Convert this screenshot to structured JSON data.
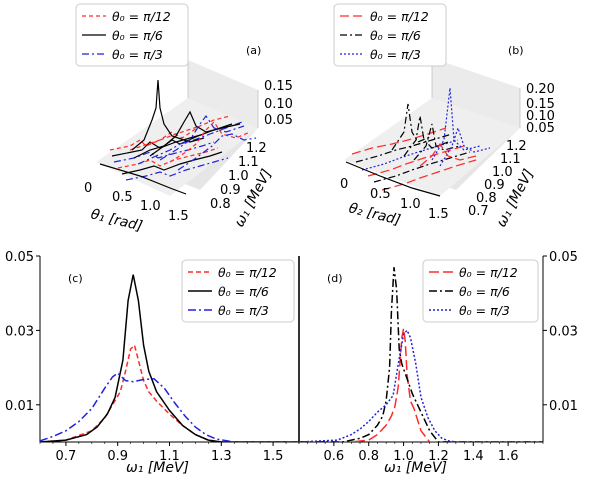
{
  "panels_3d": [
    {
      "tag": "(a)",
      "legend": [
        "θ₀ = π/12",
        "θ₀ = π/6",
        "θ₀ = π/3"
      ],
      "x_label": "θ₁ [rad]",
      "x_ticks": [
        "0",
        "0.5",
        "1.0",
        "1.5"
      ],
      "y_label": "ω₁ [MeV]",
      "y_ticks": [
        "0.8",
        "0.9",
        "1.0",
        "1.1",
        "1.2"
      ],
      "z_ticks": [
        "0.05",
        "0.10",
        "0.15"
      ]
    },
    {
      "tag": "(b)",
      "legend": [
        "θ₀ = π/12",
        "θ₀ = π/6",
        "θ₀ = π/3"
      ],
      "x_label": "θ₂ [rad]",
      "x_ticks": [
        "0",
        "0.5",
        "1.0",
        "1.5"
      ],
      "y_label": "ω₁ [MeV]",
      "y_ticks": [
        "0.7",
        "0.8",
        "0.9",
        "1.0",
        "1.1",
        "1.2"
      ],
      "z_ticks": [
        "0.05",
        "0.10",
        "0.15",
        "0.20"
      ]
    }
  ],
  "colors": {
    "pi12": "#ff2a2a",
    "pi6": "#000000",
    "pi3": "#2222dd",
    "pane": "#ebebeb"
  },
  "chart_data": [
    {
      "type": "line",
      "tag": "(c)",
      "xlabel": "ω₁ [MeV]",
      "ylabel": "",
      "xlim": [
        0.6,
        1.6
      ],
      "ylim": [
        0,
        0.05
      ],
      "x_ticks": [
        0.7,
        0.9,
        1.1,
        1.3,
        1.5
      ],
      "y_ticks": [
        0.01,
        0.03,
        0.05
      ],
      "legend_position": "top-right",
      "series": [
        {
          "name": "θ₀ = π/12",
          "color": "#ff2a2a",
          "dash": "5,3",
          "x": [
            0.6,
            0.7,
            0.8,
            0.85,
            0.88,
            0.91,
            0.93,
            0.95,
            0.965,
            0.98,
            1.0,
            1.02,
            1.05,
            1.1,
            1.15,
            1.2,
            1.25,
            1.3,
            1.6
          ],
          "y": [
            0,
            0.0005,
            0.003,
            0.0065,
            0.01,
            0.0135,
            0.019,
            0.025,
            0.026,
            0.022,
            0.0165,
            0.0135,
            0.011,
            0.0075,
            0.0045,
            0.002,
            0.0005,
            0,
            0
          ]
        },
        {
          "name": "θ₀ = π/6",
          "color": "#000000",
          "dash": "",
          "x": [
            0.6,
            0.7,
            0.78,
            0.82,
            0.86,
            0.89,
            0.92,
            0.94,
            0.96,
            0.98,
            1.0,
            1.02,
            1.05,
            1.1,
            1.15,
            1.2,
            1.25,
            1.3,
            1.6
          ],
          "y": [
            0,
            0.0005,
            0.002,
            0.004,
            0.0075,
            0.012,
            0.022,
            0.038,
            0.045,
            0.038,
            0.026,
            0.019,
            0.0135,
            0.0085,
            0.0045,
            0.002,
            0.0005,
            0,
            0
          ]
        },
        {
          "name": "θ₀ = π/3",
          "color": "#2222dd",
          "dash": "8,3,2,3",
          "x": [
            0.6,
            0.65,
            0.7,
            0.75,
            0.8,
            0.85,
            0.88,
            0.9,
            0.93,
            0.96,
            1.0,
            1.04,
            1.08,
            1.12,
            1.16,
            1.2,
            1.24,
            1.28,
            1.35,
            1.6
          ],
          "y": [
            0.0003,
            0.0015,
            0.003,
            0.0055,
            0.009,
            0.0145,
            0.0175,
            0.0185,
            0.0165,
            0.0162,
            0.0168,
            0.017,
            0.0145,
            0.0105,
            0.007,
            0.004,
            0.002,
            0.0008,
            0,
            0
          ]
        }
      ]
    },
    {
      "type": "line",
      "tag": "(d)",
      "xlabel": "ω₁ [MeV]",
      "ylabel": "",
      "xlim": [
        0.4,
        1.8
      ],
      "ylim": [
        0,
        0.05
      ],
      "x_ticks": [
        0.6,
        0.8,
        1.0,
        1.2,
        1.4,
        1.6
      ],
      "y_ticks": [
        0.01,
        0.03,
        0.05
      ],
      "legend_position": "top-right",
      "series": [
        {
          "name": "θ₀ = π/12",
          "color": "#ff2a2a",
          "dash": "10,4",
          "x": [
            0.4,
            0.7,
            0.8,
            0.85,
            0.9,
            0.93,
            0.95,
            0.97,
            0.99,
            1.0,
            1.01,
            1.02,
            1.04,
            1.06,
            1.08,
            1.1,
            1.15,
            1.8
          ],
          "y": [
            0,
            0,
            0.0005,
            0.002,
            0.0045,
            0.007,
            0.0095,
            0.015,
            0.028,
            0.0305,
            0.027,
            0.018,
            0.011,
            0.009,
            0.006,
            0.003,
            0,
            0
          ]
        },
        {
          "name": "θ₀ = π/6",
          "color": "#000000",
          "dash": "8,3,2,3",
          "x": [
            0.4,
            0.65,
            0.75,
            0.8,
            0.85,
            0.88,
            0.9,
            0.92,
            0.93,
            0.945,
            0.96,
            0.975,
            0.99,
            1.02,
            1.05,
            1.1,
            1.15,
            1.2,
            1.8
          ],
          "y": [
            0,
            0,
            0.001,
            0.002,
            0.0045,
            0.007,
            0.011,
            0.02,
            0.035,
            0.047,
            0.041,
            0.025,
            0.021,
            0.017,
            0.013,
            0.008,
            0.003,
            0,
            0
          ]
        },
        {
          "name": "θ₀ = π/3",
          "color": "#2222dd",
          "dash": "2,2",
          "x": [
            0.4,
            0.62,
            0.7,
            0.75,
            0.8,
            0.85,
            0.9,
            0.94,
            0.97,
            1.0,
            1.02,
            1.04,
            1.07,
            1.1,
            1.14,
            1.18,
            1.22,
            1.26,
            1.3,
            1.8
          ],
          "y": [
            0,
            0.0005,
            0.002,
            0.0035,
            0.0055,
            0.008,
            0.01,
            0.0125,
            0.021,
            0.029,
            0.03,
            0.028,
            0.021,
            0.012,
            0.0065,
            0.003,
            0.001,
            0.0003,
            0,
            0
          ]
        }
      ]
    }
  ]
}
